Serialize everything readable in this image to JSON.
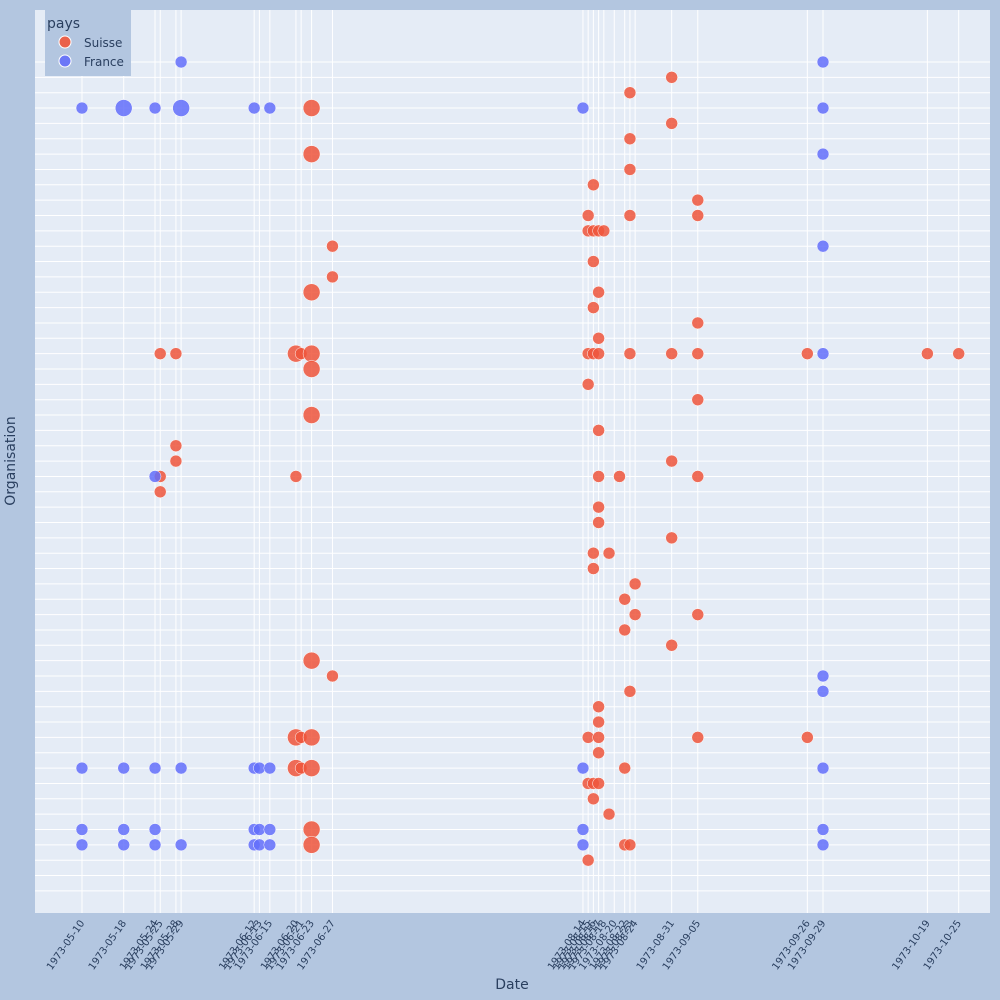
{
  "chart_data": {
    "type": "scatter",
    "xlabel": "Date",
    "ylabel": "Organisation",
    "x_axis_type": "date",
    "xlim": [
      "1973-05-01",
      "1973-10-31"
    ],
    "y_rows": 55,
    "grid": true,
    "legend": {
      "title": "pays",
      "placement": "top-left",
      "entries": [
        "Suisse",
        "France"
      ]
    },
    "x_ticks": [
      "1973-05-10",
      "1973-05-18",
      "1973-05-24",
      "1973-05-25",
      "1973-05-28",
      "1973-05-29",
      "1973-06-12",
      "1973-06-13",
      "1973-06-15",
      "1973-06-20",
      "1973-06-21",
      "1973-06-23",
      "1973-06-27",
      "1973-08-14",
      "1973-08-15",
      "1973-08-16",
      "1973-08-17",
      "1973-08-18",
      "1973-08-20",
      "1973-08-22",
      "1973-08-23",
      "1973-08-24",
      "1973-08-31",
      "1973-09-05",
      "1973-09-26",
      "1973-09-29",
      "1973-10-19",
      "1973-10-25"
    ],
    "series": [
      {
        "name": "Suisse",
        "color": "#ef553b",
        "points": [
          {
            "x": "1973-08-31",
            "y": 1,
            "size": 1
          },
          {
            "x": "1973-08-23",
            "y": 2,
            "size": 1
          },
          {
            "x": "1973-06-23",
            "y": 3,
            "size": 2
          },
          {
            "x": "1973-08-31",
            "y": 4,
            "size": 1
          },
          {
            "x": "1973-08-23",
            "y": 5,
            "size": 1
          },
          {
            "x": "1973-06-23",
            "y": 6,
            "size": 2
          },
          {
            "x": "1973-08-23",
            "y": 7,
            "size": 1
          },
          {
            "x": "1973-08-16",
            "y": 8,
            "size": 1
          },
          {
            "x": "1973-09-05",
            "y": 9,
            "size": 1
          },
          {
            "x": "1973-08-15",
            "y": 10,
            "size": 1
          },
          {
            "x": "1973-08-23",
            "y": 10,
            "size": 1
          },
          {
            "x": "1973-09-05",
            "y": 10,
            "size": 1
          },
          {
            "x": "1973-08-15",
            "y": 11,
            "size": 1
          },
          {
            "x": "1973-08-16",
            "y": 11,
            "size": 1
          },
          {
            "x": "1973-08-17",
            "y": 11,
            "size": 1
          },
          {
            "x": "1973-08-18",
            "y": 11,
            "size": 1
          },
          {
            "x": "1973-06-27",
            "y": 12,
            "size": 1
          },
          {
            "x": "1973-08-16",
            "y": 13,
            "size": 1
          },
          {
            "x": "1973-06-27",
            "y": 14,
            "size": 1
          },
          {
            "x": "1973-06-23",
            "y": 15,
            "size": 2
          },
          {
            "x": "1973-08-17",
            "y": 15,
            "size": 1
          },
          {
            "x": "1973-08-16",
            "y": 16,
            "size": 1
          },
          {
            "x": "1973-09-05",
            "y": 17,
            "size": 1
          },
          {
            "x": "1973-08-17",
            "y": 18,
            "size": 1
          },
          {
            "x": "1973-05-25",
            "y": 19,
            "size": 1
          },
          {
            "x": "1973-05-28",
            "y": 19,
            "size": 1
          },
          {
            "x": "1973-06-20",
            "y": 19,
            "size": 2
          },
          {
            "x": "1973-06-21",
            "y": 19,
            "size": 1
          },
          {
            "x": "1973-06-23",
            "y": 19,
            "size": 2
          },
          {
            "x": "1973-08-15",
            "y": 19,
            "size": 1
          },
          {
            "x": "1973-08-16",
            "y": 19,
            "size": 1
          },
          {
            "x": "1973-08-17",
            "y": 19,
            "size": 1
          },
          {
            "x": "1973-08-23",
            "y": 19,
            "size": 1
          },
          {
            "x": "1973-08-31",
            "y": 19,
            "size": 1
          },
          {
            "x": "1973-09-05",
            "y": 19,
            "size": 1
          },
          {
            "x": "1973-09-26",
            "y": 19,
            "size": 1
          },
          {
            "x": "1973-10-19",
            "y": 19,
            "size": 1
          },
          {
            "x": "1973-10-25",
            "y": 19,
            "size": 1
          },
          {
            "x": "1973-06-23",
            "y": 20,
            "size": 2
          },
          {
            "x": "1973-08-15",
            "y": 21,
            "size": 1
          },
          {
            "x": "1973-09-05",
            "y": 22,
            "size": 1
          },
          {
            "x": "1973-06-23",
            "y": 23,
            "size": 2
          },
          {
            "x": "1973-08-17",
            "y": 24,
            "size": 1
          },
          {
            "x": "1973-05-28",
            "y": 25,
            "size": 1
          },
          {
            "x": "1973-05-28",
            "y": 26,
            "size": 1
          },
          {
            "x": "1973-08-31",
            "y": 26,
            "size": 1
          },
          {
            "x": "1973-05-25",
            "y": 27,
            "size": 1
          },
          {
            "x": "1973-06-20",
            "y": 27,
            "size": 1
          },
          {
            "x": "1973-08-17",
            "y": 27,
            "size": 1
          },
          {
            "x": "1973-08-21",
            "y": 27,
            "size": 1
          },
          {
            "x": "1973-09-05",
            "y": 27,
            "size": 1
          },
          {
            "x": "1973-05-25",
            "y": 28,
            "size": 1
          },
          {
            "x": "1973-08-17",
            "y": 29,
            "size": 1
          },
          {
            "x": "1973-08-17",
            "y": 30,
            "size": 1
          },
          {
            "x": "1973-08-31",
            "y": 31,
            "size": 1
          },
          {
            "x": "1973-08-16",
            "y": 32,
            "size": 1
          },
          {
            "x": "1973-08-19",
            "y": 32,
            "size": 1
          },
          {
            "x": "1973-08-16",
            "y": 33,
            "size": 1
          },
          {
            "x": "1973-08-24",
            "y": 34,
            "size": 1
          },
          {
            "x": "1973-08-22",
            "y": 35,
            "size": 1
          },
          {
            "x": "1973-08-24",
            "y": 36,
            "size": 1
          },
          {
            "x": "1973-09-05",
            "y": 36,
            "size": 1
          },
          {
            "x": "1973-08-22",
            "y": 37,
            "size": 1
          },
          {
            "x": "1973-08-31",
            "y": 38,
            "size": 1
          },
          {
            "x": "1973-06-23",
            "y": 39,
            "size": 2
          },
          {
            "x": "1973-06-27",
            "y": 40,
            "size": 1
          },
          {
            "x": "1973-08-23",
            "y": 41,
            "size": 1
          },
          {
            "x": "1973-08-17",
            "y": 42,
            "size": 1
          },
          {
            "x": "1973-08-17",
            "y": 43,
            "size": 1
          },
          {
            "x": "1973-06-20",
            "y": 44,
            "size": 2
          },
          {
            "x": "1973-06-21",
            "y": 44,
            "size": 1
          },
          {
            "x": "1973-06-23",
            "y": 44,
            "size": 2
          },
          {
            "x": "1973-08-15",
            "y": 44,
            "size": 1
          },
          {
            "x": "1973-08-17",
            "y": 44,
            "size": 1
          },
          {
            "x": "1973-09-05",
            "y": 44,
            "size": 1
          },
          {
            "x": "1973-09-26",
            "y": 44,
            "size": 1
          },
          {
            "x": "1973-08-17",
            "y": 45,
            "size": 1
          },
          {
            "x": "1973-06-20",
            "y": 46,
            "size": 2
          },
          {
            "x": "1973-06-21",
            "y": 46,
            "size": 1
          },
          {
            "x": "1973-06-23",
            "y": 46,
            "size": 2
          },
          {
            "x": "1973-08-22",
            "y": 46,
            "size": 1
          },
          {
            "x": "1973-08-15",
            "y": 47,
            "size": 1
          },
          {
            "x": "1973-08-16",
            "y": 47,
            "size": 1
          },
          {
            "x": "1973-08-17",
            "y": 47,
            "size": 1
          },
          {
            "x": "1973-08-16",
            "y": 48,
            "size": 1
          },
          {
            "x": "1973-08-19",
            "y": 49,
            "size": 1
          },
          {
            "x": "1973-06-23",
            "y": 50,
            "size": 2
          },
          {
            "x": "1973-06-23",
            "y": 51,
            "size": 2
          },
          {
            "x": "1973-08-22",
            "y": 51,
            "size": 1
          },
          {
            "x": "1973-08-23",
            "y": 51,
            "size": 1
          },
          {
            "x": "1973-08-15",
            "y": 52,
            "size": 1
          }
        ]
      },
      {
        "name": "France",
        "color": "#636efa",
        "points": [
          {
            "x": "1973-05-29",
            "y": 0,
            "size": 1
          },
          {
            "x": "1973-09-29",
            "y": 0,
            "size": 1
          },
          {
            "x": "1973-05-10",
            "y": 3,
            "size": 1
          },
          {
            "x": "1973-05-18",
            "y": 3,
            "size": 2
          },
          {
            "x": "1973-05-24",
            "y": 3,
            "size": 1
          },
          {
            "x": "1973-05-29",
            "y": 3,
            "size": 2
          },
          {
            "x": "1973-06-12",
            "y": 3,
            "size": 1
          },
          {
            "x": "1973-06-15",
            "y": 3,
            "size": 1
          },
          {
            "x": "1973-08-14",
            "y": 3,
            "size": 1
          },
          {
            "x": "1973-09-29",
            "y": 3,
            "size": 1
          },
          {
            "x": "1973-09-29",
            "y": 6,
            "size": 1
          },
          {
            "x": "1973-09-29",
            "y": 12,
            "size": 1
          },
          {
            "x": "1973-09-29",
            "y": 19,
            "size": 1
          },
          {
            "x": "1973-05-24",
            "y": 27,
            "size": 1
          },
          {
            "x": "1973-09-29",
            "y": 40,
            "size": 1
          },
          {
            "x": "1973-09-29",
            "y": 41,
            "size": 1
          },
          {
            "x": "1973-05-10",
            "y": 46,
            "size": 1
          },
          {
            "x": "1973-05-18",
            "y": 46,
            "size": 1
          },
          {
            "x": "1973-05-24",
            "y": 46,
            "size": 1
          },
          {
            "x": "1973-05-29",
            "y": 46,
            "size": 1
          },
          {
            "x": "1973-06-12",
            "y": 46,
            "size": 1
          },
          {
            "x": "1973-06-13",
            "y": 46,
            "size": 1
          },
          {
            "x": "1973-06-15",
            "y": 46,
            "size": 1
          },
          {
            "x": "1973-08-14",
            "y": 46,
            "size": 1
          },
          {
            "x": "1973-09-29",
            "y": 46,
            "size": 1
          },
          {
            "x": "1973-05-10",
            "y": 50,
            "size": 1
          },
          {
            "x": "1973-05-18",
            "y": 50,
            "size": 1
          },
          {
            "x": "1973-05-24",
            "y": 50,
            "size": 1
          },
          {
            "x": "1973-06-12",
            "y": 50,
            "size": 1
          },
          {
            "x": "1973-06-13",
            "y": 50,
            "size": 1
          },
          {
            "x": "1973-06-15",
            "y": 50,
            "size": 1
          },
          {
            "x": "1973-08-14",
            "y": 50,
            "size": 1
          },
          {
            "x": "1973-09-29",
            "y": 50,
            "size": 1
          },
          {
            "x": "1973-05-10",
            "y": 51,
            "size": 1
          },
          {
            "x": "1973-05-18",
            "y": 51,
            "size": 1
          },
          {
            "x": "1973-05-24",
            "y": 51,
            "size": 1
          },
          {
            "x": "1973-05-29",
            "y": 51,
            "size": 1
          },
          {
            "x": "1973-06-12",
            "y": 51,
            "size": 1
          },
          {
            "x": "1973-06-13",
            "y": 51,
            "size": 1
          },
          {
            "x": "1973-06-15",
            "y": 51,
            "size": 1
          },
          {
            "x": "1973-08-14",
            "y": 51,
            "size": 1
          },
          {
            "x": "1973-09-29",
            "y": 51,
            "size": 1
          }
        ]
      }
    ]
  }
}
